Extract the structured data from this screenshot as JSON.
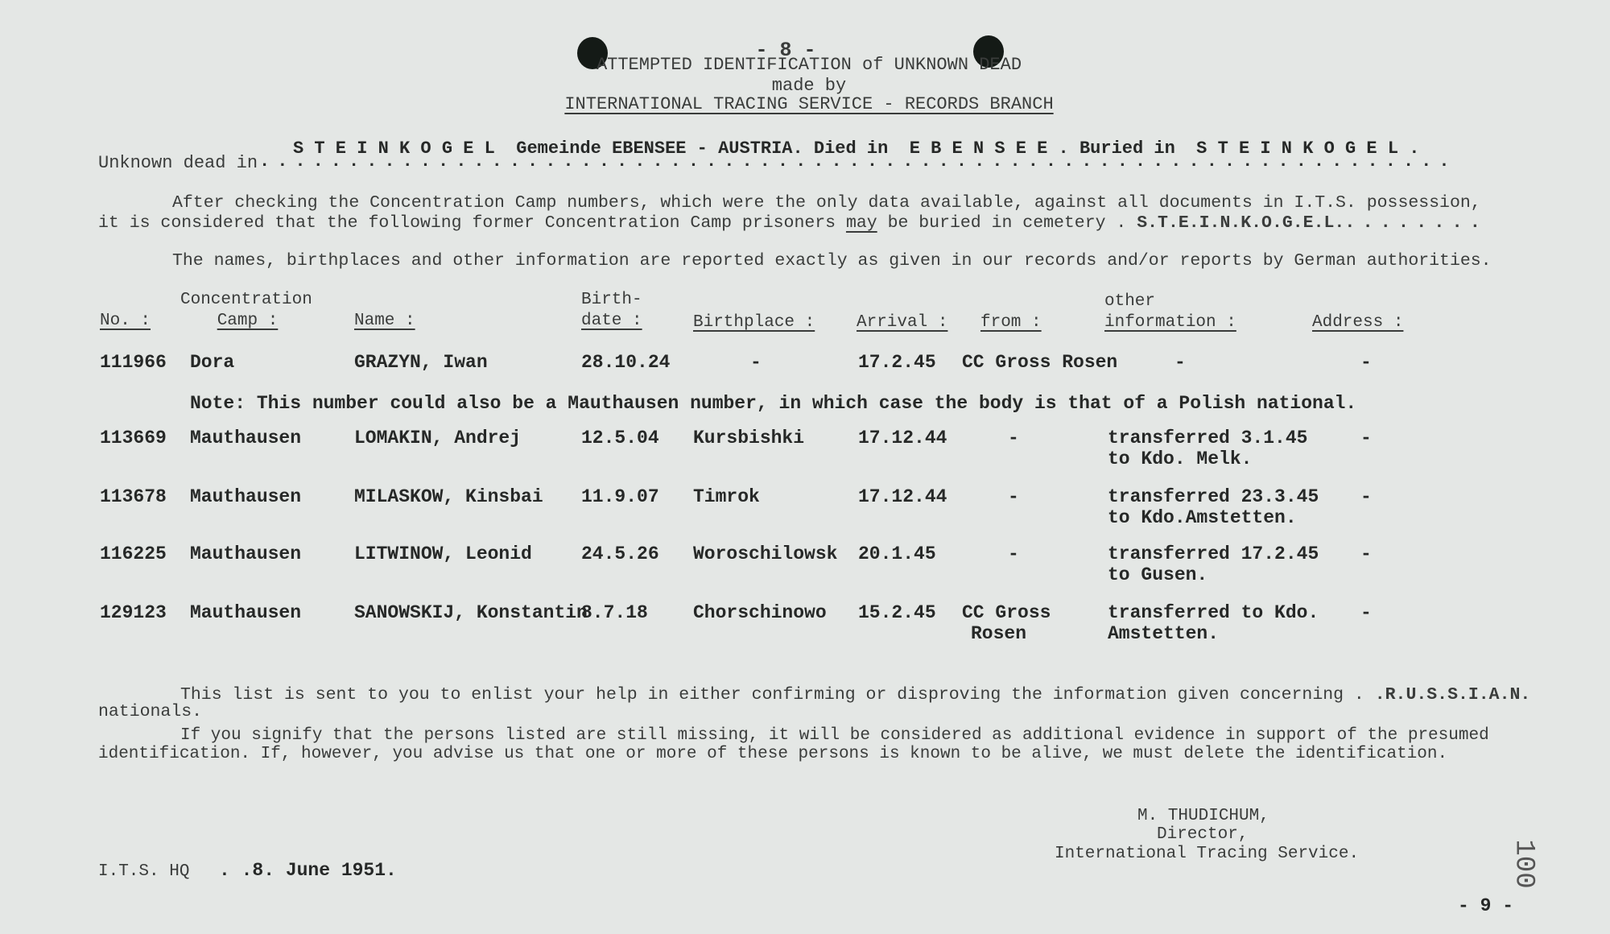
{
  "header": {
    "page_number": "- 8 -",
    "title": "ATTEMPTED IDENTIFICATION of UNKNOWN DEAD",
    "made_by": "made by",
    "organization": "INTERNATIONAL TRACING SERVICE - RECORDS BRANCH"
  },
  "location": {
    "detail": "S T E I N K O G E L  Gemeinde EBENSEE - AUSTRIA. Died in  E B E N S E E . Buried in  S T E I N K O G E L .",
    "label": "Unknown dead in",
    "dots": "..................................................................."
  },
  "intro": {
    "line1": "After checking the Concentration Camp numbers, which were the only data available, against all documents in I.T.S. possession,",
    "line2_pre": "it is considered that the following former Concentration Camp prisoners ",
    "line2_may": "may",
    "line2_post": " be buried in cemetery . ",
    "cemetery": "S.T.E.I.N.K.O.G.E.L.",
    "line2_dots": "........",
    "note": "The names, birthplaces and other information are reported exactly as given in our records and/or reports by German authorities."
  },
  "table": {
    "headers": {
      "no": "No. :",
      "camp_top": "Concentration",
      "camp": "Camp :",
      "name": "Name :",
      "birthdate_top": "Birth-",
      "birthdate": "date :",
      "birthplace": "Birthplace :",
      "arrival": "Arrival :",
      "from": "from :",
      "other_top": "other",
      "other": "information :",
      "address": "Address :"
    },
    "rows": [
      {
        "no": "111966",
        "camp": "Dora",
        "name": "GRAZYN, Iwan",
        "birthdate": "28.10.24",
        "birthplace": "-",
        "arrival": "17.2.45",
        "from": "CC Gross Rosen",
        "from2": "",
        "other": "-",
        "other2": "",
        "address": "-"
      },
      {
        "no": "113669",
        "camp": "Mauthausen",
        "name": "LOMAKIN, Andrej",
        "birthdate": "12.5.04",
        "birthplace": "Kursbishki",
        "arrival": "17.12.44",
        "from": "-",
        "from2": "",
        "other": "transferred 3.1.45",
        "other2": "to Kdo. Melk.",
        "address": "-"
      },
      {
        "no": "113678",
        "camp": "Mauthausen",
        "name": "MILASKOW, Kinsbai",
        "birthdate": "11.9.07",
        "birthplace": "Timrok",
        "arrival": "17.12.44",
        "from": "-",
        "from2": "",
        "other": "transferred 23.3.45",
        "other2": "to Kdo.Amstetten.",
        "address": "-"
      },
      {
        "no": "116225",
        "camp": "Mauthausen",
        "name": "LITWINOW, Leonid",
        "birthdate": "24.5.26",
        "birthplace": "Woroschilowsk",
        "arrival": "20.1.45",
        "from": "-",
        "from2": "",
        "other": "transferred 17.2.45",
        "other2": "to Gusen.",
        "address": "-"
      },
      {
        "no": "129123",
        "camp": "Mauthausen",
        "name": "SANOWSKIJ, Konstantin",
        "birthdate": "8.7.18",
        "birthplace": "Chorschinowo",
        "arrival": "15.2.45",
        "from": "CC Gross",
        "from2": "Rosen",
        "other": "transferred to Kdo.",
        "other2": "Amstetten.",
        "address": "-"
      }
    ],
    "note": "Note: This number could also be a Mauthausen number, in which case the body is that of a Polish national."
  },
  "closing": {
    "p1_line1": "This list is sent to you to enlist your help in either confirming or disproving the information given concerning . ",
    "nationality": ".R.U.S.S.I.A.N.",
    "p1_line2": "nationals.",
    "p2_line1": "If you signify that the persons listed are still missing, it will be considered as additional evidence in support of the presumed",
    "p2_line2": "identification. If, however, you advise us that one or more of these persons is known to be alive, we must delete the identification."
  },
  "signature": {
    "name": "M. THUDICHUM,",
    "title": "Director,",
    "org": "International Tracing Service."
  },
  "footer": {
    "place": "I.T.S. HQ",
    "date": ". .8. June 1951.",
    "stamp_number": "100",
    "next_page": "- 9 -"
  }
}
